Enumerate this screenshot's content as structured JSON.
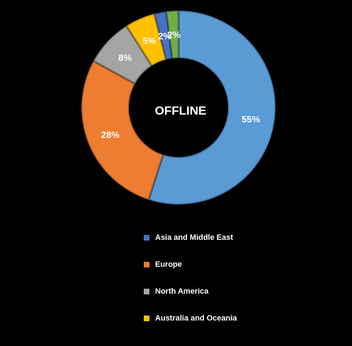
{
  "chart_data": {
    "type": "donut",
    "center_label": "OFFLINE",
    "slices": [
      {
        "name": "Asia and Middle East",
        "value": 55,
        "label": "55%",
        "color": "#5B9BD5"
      },
      {
        "name": "Europe",
        "value": 28,
        "label": "28%",
        "color": "#ED7D31"
      },
      {
        "name": "North America",
        "value": 8,
        "label": "8%",
        "color": "#A5A5A5"
      },
      {
        "name": "Australia and Oceania",
        "value": 5,
        "label": "5%",
        "color": "#FFC000"
      },
      {
        "name": "",
        "value": 2,
        "label": "2%",
        "color": "#4472C4"
      },
      {
        "name": "",
        "value": 2,
        "label": "2%",
        "color": "#70AD47"
      }
    ],
    "legend": [
      {
        "label": "Asia and Middle East",
        "color": "#4472C4"
      },
      {
        "label": "Europe",
        "color": "#ED7D31"
      },
      {
        "label": "North America",
        "color": "#A5A5A5"
      },
      {
        "label": "Australia and Oceania",
        "color": "#FFC000"
      }
    ],
    "legend_position": "bottom"
  }
}
